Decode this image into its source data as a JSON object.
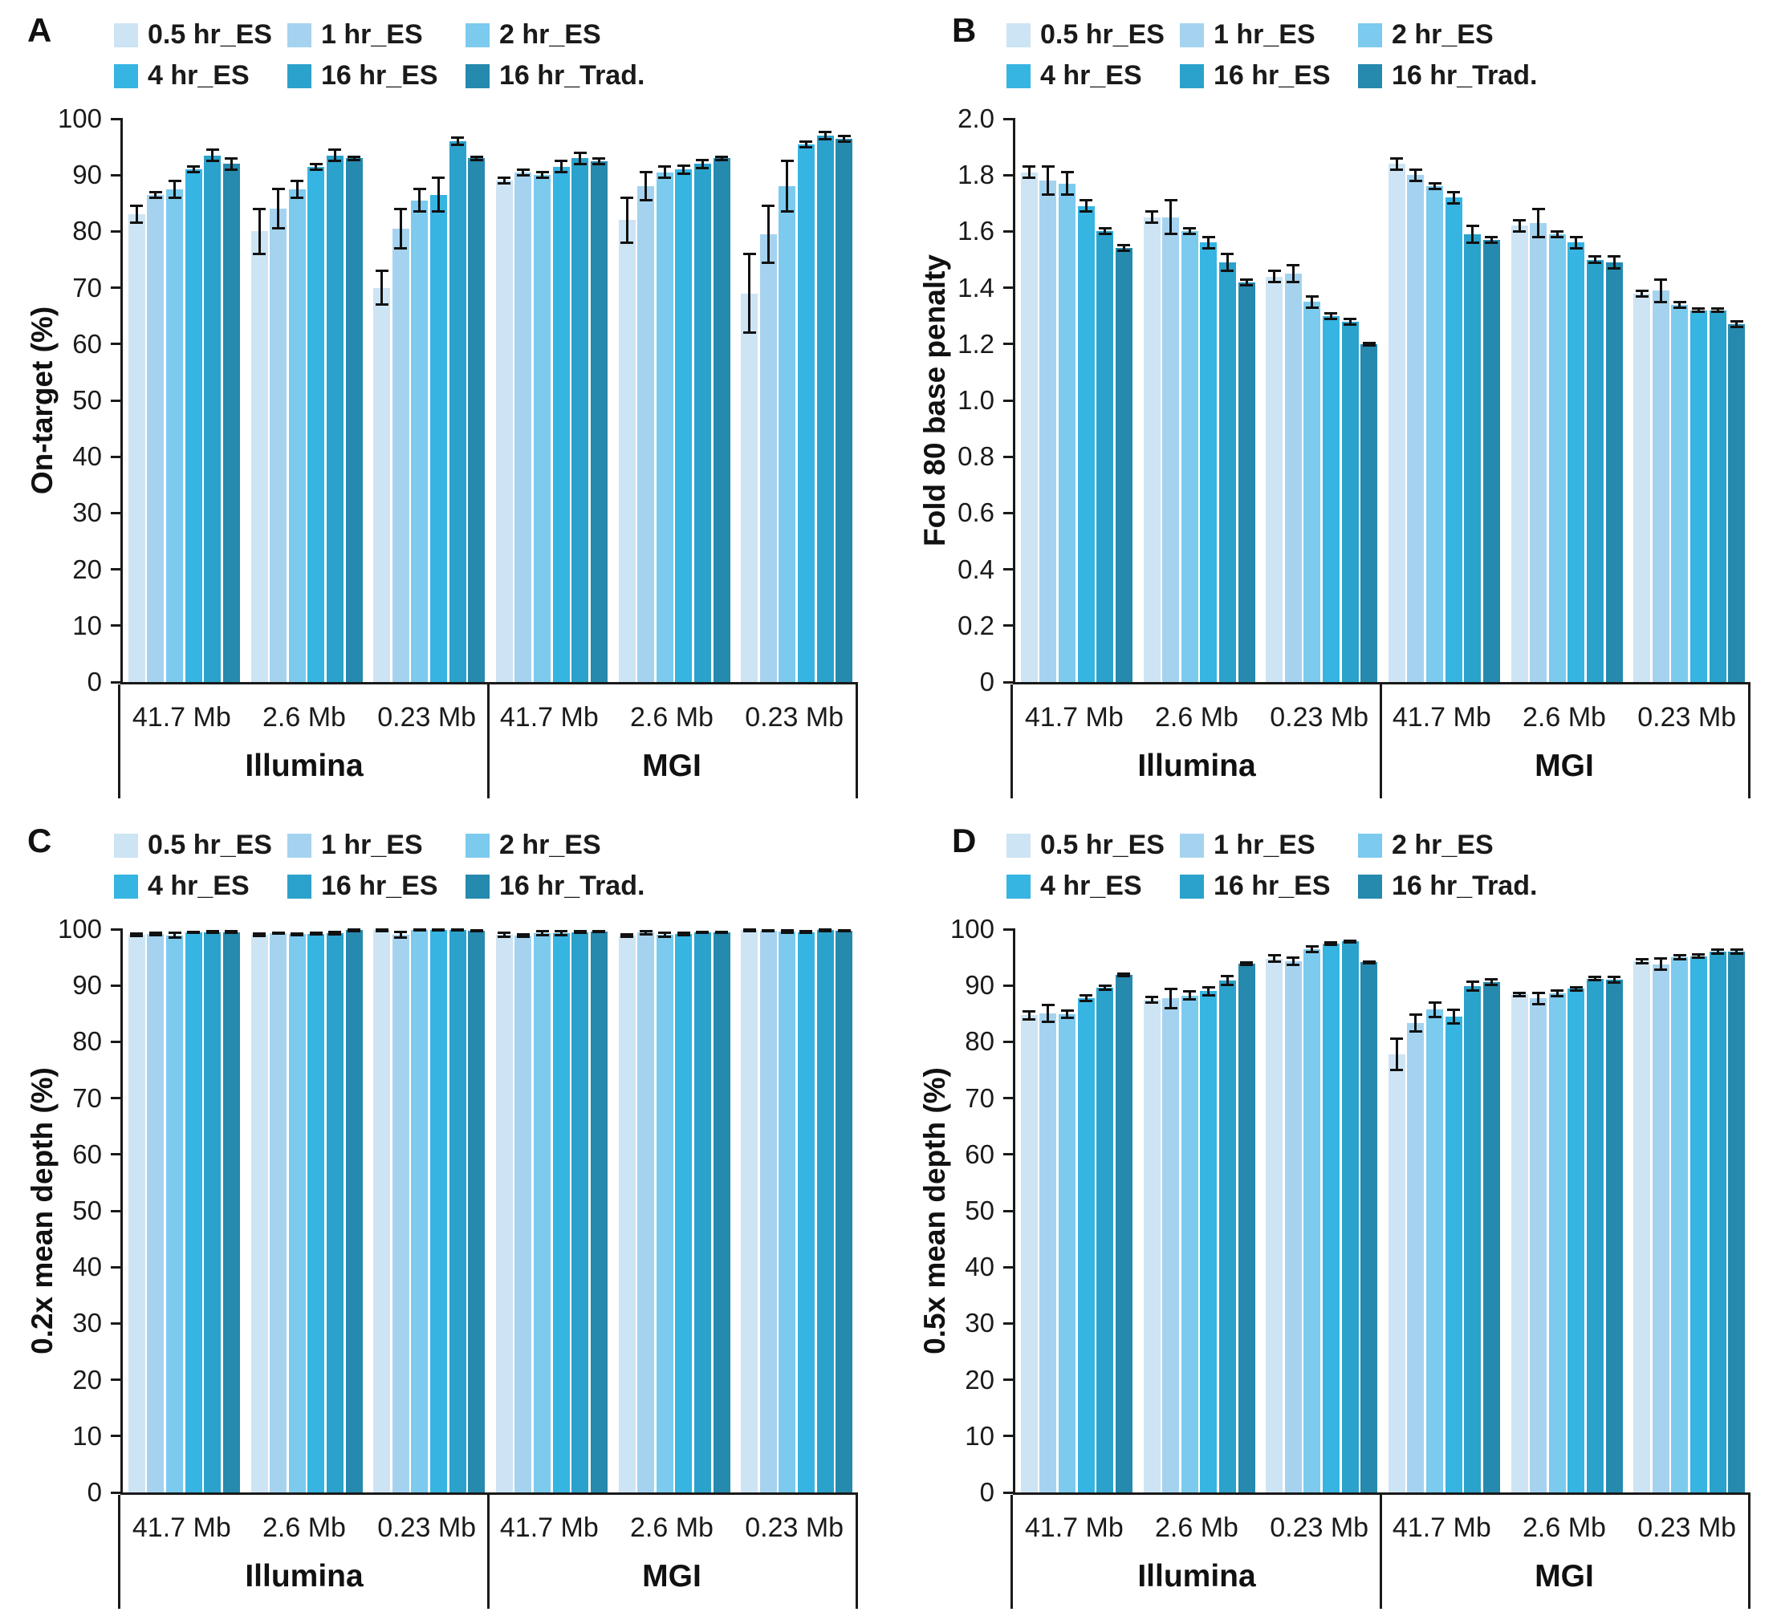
{
  "colors": {
    "series": [
      "#cde4f4",
      "#a5d3ef",
      "#7ccaee",
      "#36b4e2",
      "#2ba2cb",
      "#2689ae"
    ],
    "axis": "#1a1a1a"
  },
  "chart_data": [
    {
      "panel": "A",
      "type": "bar",
      "title": "",
      "ylabel": "On-target (%)",
      "xlabel": "",
      "ylim": [
        0,
        100
      ],
      "yticks": [
        0,
        10,
        20,
        30,
        40,
        50,
        60,
        70,
        80,
        90,
        100
      ],
      "ytick_labels": [
        "0",
        "10",
        "20",
        "30",
        "40",
        "50",
        "60",
        "70",
        "80",
        "90",
        "100"
      ],
      "legend_position": "top",
      "grid": false,
      "series_labels": [
        "0.5 hr_ES",
        "1 hr_ES",
        "2 hr_ES",
        "4 hr_ES",
        "16 hr_ES",
        "16 hr_Trad."
      ],
      "platforms": [
        {
          "label": "Illumina"
        },
        {
          "label": "MGI"
        }
      ],
      "groups": [
        {
          "platform": "Illumina",
          "size": "41.7 Mb",
          "values": [
            83,
            86.5,
            87.5,
            91,
            93.5,
            92
          ],
          "errors": [
            1.5,
            0.5,
            1.5,
            0.5,
            1,
            1
          ]
        },
        {
          "platform": "Illumina",
          "size": "2.6 Mb",
          "values": [
            80,
            84,
            87.5,
            91.5,
            93.5,
            93
          ],
          "errors": [
            4,
            3.5,
            1.5,
            0.5,
            1,
            0.3
          ]
        },
        {
          "platform": "Illumina",
          "size": "0.23 Mb",
          "values": [
            70,
            80.5,
            85.5,
            86.5,
            96,
            93
          ],
          "errors": [
            3,
            3.5,
            2,
            3,
            0.7,
            0.3
          ]
        },
        {
          "platform": "MGI",
          "size": "41.7 Mb",
          "values": [
            89,
            90.5,
            90,
            91.5,
            93,
            92.5
          ],
          "errors": [
            0.5,
            0.5,
            0.5,
            1,
            1,
            0.5
          ]
        },
        {
          "platform": "MGI",
          "size": "2.6 Mb",
          "values": [
            82,
            88,
            90.5,
            91,
            92,
            93
          ],
          "errors": [
            4,
            2.5,
            1,
            0.7,
            0.7,
            0.3
          ]
        },
        {
          "platform": "MGI",
          "size": "0.23 Mb",
          "values": [
            69,
            79.5,
            88,
            95.5,
            97,
            96.5
          ],
          "errors": [
            7,
            5,
            4.5,
            0.5,
            0.7,
            0.5
          ]
        }
      ]
    },
    {
      "panel": "B",
      "type": "bar",
      "title": "",
      "ylabel": "Fold 80 base penalty",
      "xlabel": "",
      "ylim": [
        0,
        2.0
      ],
      "yticks": [
        0,
        0.2,
        0.4,
        0.6,
        0.8,
        1.0,
        1.2,
        1.4,
        1.6,
        1.8,
        2.0
      ],
      "ytick_labels": [
        "0",
        "0.2",
        "0.4",
        "0.6",
        "0.8",
        "1.0",
        "1.2",
        "1.4",
        "1.6",
        "1.8",
        "2.0"
      ],
      "legend_position": "top",
      "grid": false,
      "series_labels": [
        "0.5 hr_ES",
        "1 hr_ES",
        "2 hr_ES",
        "4 hr_ES",
        "16 hr_ES",
        "16 hr_Trad."
      ],
      "platforms": [
        {
          "label": "Illumina"
        },
        {
          "label": "MGI"
        }
      ],
      "groups": [
        {
          "platform": "Illumina",
          "size": "41.7 Mb",
          "values": [
            1.81,
            1.78,
            1.77,
            1.69,
            1.6,
            1.54
          ],
          "errors": [
            0.02,
            0.05,
            0.04,
            0.02,
            0.01,
            0.01
          ]
        },
        {
          "platform": "Illumina",
          "size": "2.6 Mb",
          "values": [
            1.65,
            1.65,
            1.6,
            1.56,
            1.49,
            1.42
          ],
          "errors": [
            0.02,
            0.06,
            0.01,
            0.02,
            0.03,
            0.01
          ]
        },
        {
          "platform": "Illumina",
          "size": "0.23 Mb",
          "values": [
            1.44,
            1.45,
            1.35,
            1.3,
            1.28,
            1.2
          ],
          "errors": [
            0.02,
            0.03,
            0.02,
            0.01,
            0.01,
            0.005
          ]
        },
        {
          "platform": "MGI",
          "size": "41.7 Mb",
          "values": [
            1.84,
            1.8,
            1.76,
            1.72,
            1.59,
            1.57
          ],
          "errors": [
            0.02,
            0.02,
            0.01,
            0.02,
            0.03,
            0.01
          ]
        },
        {
          "platform": "MGI",
          "size": "2.6 Mb",
          "values": [
            1.62,
            1.63,
            1.59,
            1.56,
            1.5,
            1.49
          ],
          "errors": [
            0.02,
            0.05,
            0.01,
            0.02,
            0.01,
            0.02
          ]
        },
        {
          "platform": "MGI",
          "size": "0.23 Mb",
          "values": [
            1.38,
            1.39,
            1.34,
            1.32,
            1.32,
            1.27
          ],
          "errors": [
            0.01,
            0.04,
            0.01,
            0.005,
            0.005,
            0.01
          ]
        }
      ]
    },
    {
      "panel": "C",
      "type": "bar",
      "title": "",
      "ylabel": "0.2x mean depth (%)",
      "xlabel": "",
      "ylim": [
        0,
        100
      ],
      "yticks": [
        0,
        10,
        20,
        30,
        40,
        50,
        60,
        70,
        80,
        90,
        100
      ],
      "ytick_labels": [
        "0",
        "10",
        "20",
        "30",
        "40",
        "50",
        "60",
        "70",
        "80",
        "90",
        "100"
      ],
      "legend_position": "top",
      "grid": false,
      "series_labels": [
        "0.5 hr_ES",
        "1 hr_ES",
        "2 hr_ES",
        "4 hr_ES",
        "16 hr_ES",
        "16 hr_Trad."
      ],
      "platforms": [
        {
          "label": "Illumina"
        },
        {
          "label": "MGI"
        }
      ],
      "groups": [
        {
          "platform": "Illumina",
          "size": "41.7 Mb",
          "values": [
            99.0,
            99.2,
            98.9,
            99.4,
            99.5,
            99.5
          ],
          "errors": [
            0.2,
            0.2,
            0.4,
            0.1,
            0.1,
            0.1
          ]
        },
        {
          "platform": "Illumina",
          "size": "2.6 Mb",
          "values": [
            99.0,
            99.3,
            99.1,
            99.2,
            99.3,
            99.8
          ],
          "errors": [
            0.2,
            0.1,
            0.1,
            0.1,
            0.2,
            0.1
          ]
        },
        {
          "platform": "Illumina",
          "size": "0.23 Mb",
          "values": [
            99.8,
            99.0,
            99.9,
            99.9,
            99.9,
            99.7
          ],
          "errors": [
            0.1,
            0.5,
            0.1,
            0.1,
            0.1,
            0.1
          ]
        },
        {
          "platform": "MGI",
          "size": "41.7 Mb",
          "values": [
            99.0,
            98.9,
            99.3,
            99.3,
            99.5,
            99.6
          ],
          "errors": [
            0.4,
            0.2,
            0.4,
            0.4,
            0.1,
            0.1
          ]
        },
        {
          "platform": "MGI",
          "size": "2.6 Mb",
          "values": [
            98.9,
            99.4,
            99.0,
            99.1,
            99.4,
            99.4
          ],
          "errors": [
            0.2,
            0.3,
            0.3,
            0.2,
            0.1,
            0.1
          ]
        },
        {
          "platform": "MGI",
          "size": "0.23 Mb",
          "values": [
            99.8,
            99.7,
            99.6,
            99.5,
            99.8,
            99.7
          ],
          "errors": [
            0.1,
            0.1,
            0.2,
            0.1,
            0.1,
            0.1
          ]
        }
      ]
    },
    {
      "panel": "D",
      "type": "bar",
      "title": "",
      "ylabel": "0.5x mean depth (%)",
      "xlabel": "",
      "ylim": [
        0,
        100
      ],
      "yticks": [
        0,
        10,
        20,
        30,
        40,
        50,
        60,
        70,
        80,
        90,
        100
      ],
      "ytick_labels": [
        "0",
        "10",
        "20",
        "30",
        "40",
        "50",
        "60",
        "70",
        "80",
        "90",
        "100"
      ],
      "legend_position": "top",
      "grid": false,
      "series_labels": [
        "0.5 hr_ES",
        "1 hr_ES",
        "2 hr_ES",
        "4 hr_ES",
        "16 hr_ES",
        "16 hr_Trad."
      ],
      "platforms": [
        {
          "label": "Illumina"
        },
        {
          "label": "MGI"
        }
      ],
      "groups": [
        {
          "platform": "Illumina",
          "size": "41.7 Mb",
          "values": [
            84.7,
            85.1,
            84.9,
            87.7,
            89.6,
            91.9
          ],
          "errors": [
            0.7,
            1.5,
            0.7,
            0.5,
            0.3,
            0.2
          ]
        },
        {
          "platform": "Illumina",
          "size": "2.6 Mb",
          "values": [
            87.4,
            87.7,
            88.2,
            89.0,
            90.9,
            93.9
          ],
          "errors": [
            0.5,
            1.7,
            0.7,
            0.7,
            0.8,
            0.2
          ]
        },
        {
          "platform": "Illumina",
          "size": "0.23 Mb",
          "values": [
            94.8,
            94.3,
            96.4,
            97.4,
            97.8,
            94.1
          ],
          "errors": [
            0.5,
            0.6,
            0.5,
            0.2,
            0.2,
            0.2
          ]
        },
        {
          "platform": "MGI",
          "size": "41.7 Mb",
          "values": [
            77.8,
            83.4,
            85.7,
            84.5,
            89.9,
            90.6
          ],
          "errors": [
            2.8,
            1.5,
            1.3,
            1.2,
            0.8,
            0.5
          ]
        },
        {
          "platform": "MGI",
          "size": "2.6 Mb",
          "values": [
            88.4,
            87.7,
            88.6,
            89.4,
            91.2,
            91.0
          ],
          "errors": [
            0.3,
            1.0,
            0.5,
            0.3,
            0.3,
            0.5
          ]
        },
        {
          "platform": "MGI",
          "size": "0.23 Mb",
          "values": [
            94.3,
            93.8,
            95.0,
            95.2,
            96.0,
            96.0
          ],
          "errors": [
            0.3,
            1.0,
            0.3,
            0.3,
            0.3,
            0.3
          ]
        }
      ]
    }
  ]
}
